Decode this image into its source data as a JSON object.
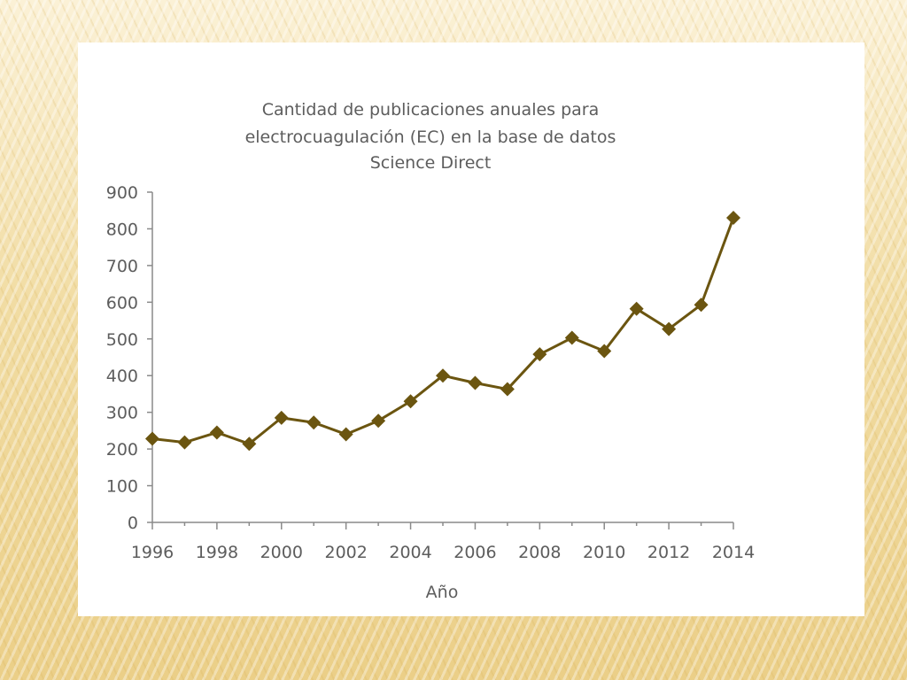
{
  "colors": {
    "series": "#6b5510",
    "axis": "#8a8a8a",
    "text": "#5d5d5d",
    "panel": "#ffffff",
    "background": "#f3e0ad"
  },
  "chart_data": {
    "type": "line",
    "title_lines": [
      "Cantidad de publicaciones anuales para",
      "electrocuagulación (EC) en la base de datos",
      "Science Direct"
    ],
    "xlabel": "Año",
    "ylabel": "",
    "x": [
      1996,
      1997,
      1998,
      1999,
      2000,
      2001,
      2002,
      2003,
      2004,
      2005,
      2006,
      2007,
      2008,
      2009,
      2010,
      2011,
      2012,
      2013,
      2014
    ],
    "series": [
      {
        "values": [
          228,
          218,
          245,
          214,
          285,
          272,
          240,
          277,
          330,
          400,
          380,
          363,
          458,
          503,
          467,
          582,
          527,
          593,
          830
        ],
        "marker": "diamond"
      }
    ],
    "xlim": [
      1996,
      2014
    ],
    "ylim": [
      0,
      900
    ],
    "x_ticks": [
      "1996",
      "1998",
      "2000",
      "2002",
      "2004",
      "2006",
      "2008",
      "2010",
      "2012",
      "2014"
    ],
    "y_ticks": [
      "0",
      "100",
      "200",
      "300",
      "400",
      "500",
      "600",
      "700",
      "800",
      "900"
    ],
    "grid": false,
    "legend": "none"
  }
}
